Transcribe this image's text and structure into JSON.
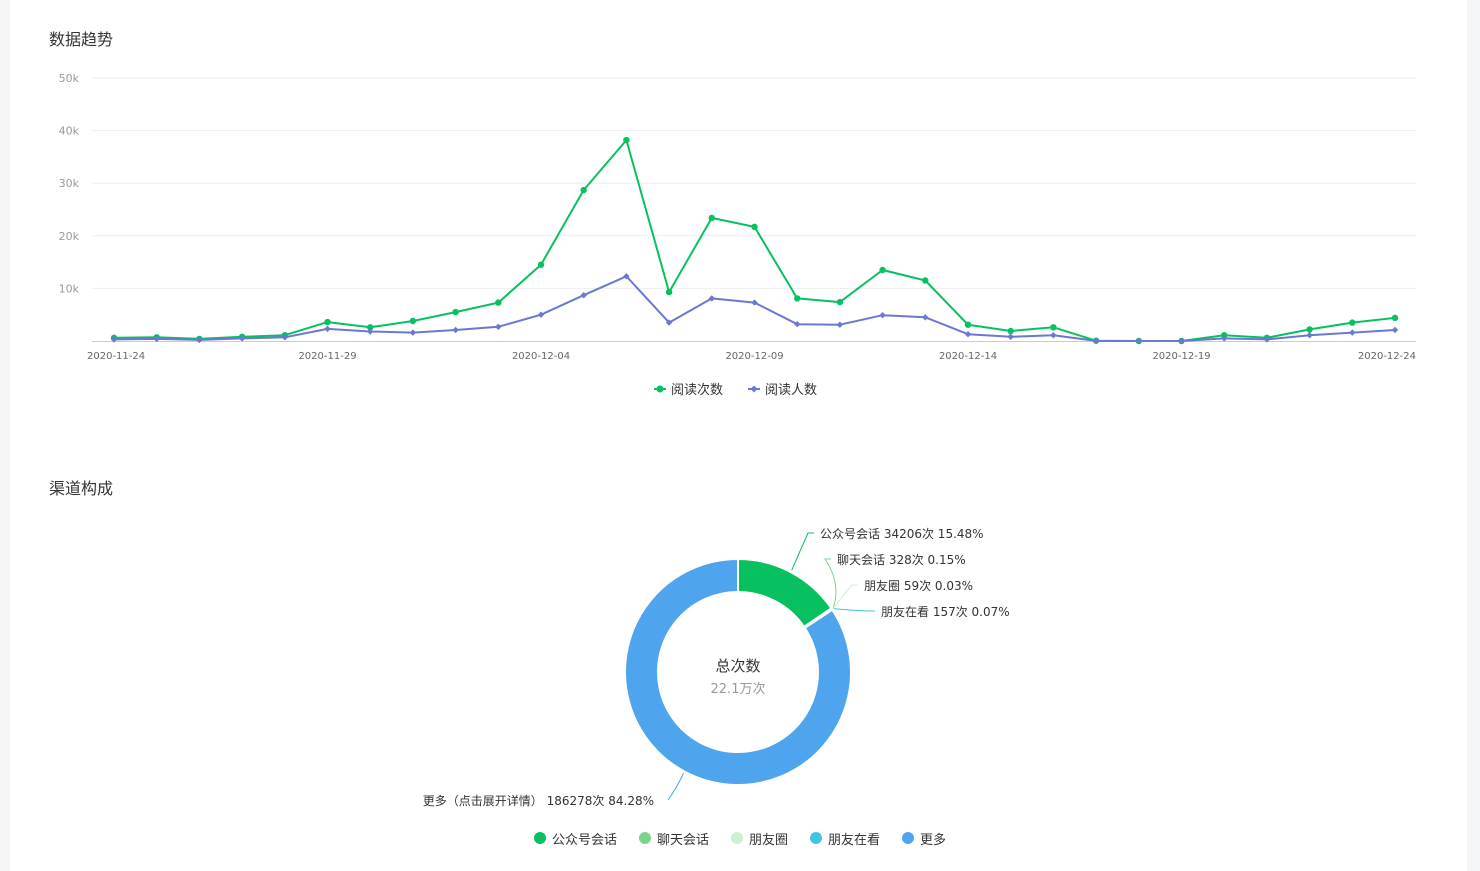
{
  "trend": {
    "title": "数据趋势"
  },
  "channel": {
    "title": "渠道构成",
    "center_title": "总次数",
    "center_value": "22.1万次"
  },
  "chart_data": [
    {
      "type": "line",
      "y_ticks": [
        "50k",
        "40k",
        "30k",
        "20k",
        "10k"
      ],
      "y_tick_values": [
        50000,
        40000,
        30000,
        20000,
        10000
      ],
      "ylim": [
        0,
        50000
      ],
      "x_tick_labels": [
        "2020-11-24",
        "2020-11-29",
        "2020-12-04",
        "2020-12-09",
        "2020-12-14",
        "2020-12-19",
        "2020-12-24"
      ],
      "x": [
        "2020-11-24",
        "2020-11-25",
        "2020-11-26",
        "2020-11-27",
        "2020-11-28",
        "2020-11-29",
        "2020-11-30",
        "2020-12-01",
        "2020-12-02",
        "2020-12-03",
        "2020-12-04",
        "2020-12-05",
        "2020-12-06",
        "2020-12-07",
        "2020-12-08",
        "2020-12-09",
        "2020-12-10",
        "2020-12-11",
        "2020-12-12",
        "2020-12-13",
        "2020-12-14",
        "2020-12-15",
        "2020-12-16",
        "2020-12-17",
        "2020-12-18",
        "2020-12-19",
        "2020-12-20",
        "2020-12-21",
        "2020-12-22",
        "2020-12-23",
        "2020-12-24"
      ],
      "series": [
        {
          "name": "阅读次数",
          "color": "#07c160",
          "marker": "circle",
          "values": [
            600,
            700,
            400,
            800,
            1100,
            3600,
            2600,
            3800,
            5500,
            7300,
            14500,
            28700,
            38200,
            9300,
            23400,
            21700,
            8100,
            7400,
            13500,
            11500,
            3100,
            1900,
            2600,
            50,
            0,
            0,
            1100,
            600,
            2200,
            3500,
            4400
          ]
        },
        {
          "name": "阅读人数",
          "color": "#6b78cf",
          "marker": "diamond",
          "values": [
            300,
            400,
            200,
            500,
            700,
            2300,
            1800,
            1600,
            2100,
            2700,
            5000,
            8700,
            12300,
            3500,
            8100,
            7300,
            3200,
            3100,
            4900,
            4500,
            1300,
            800,
            1100,
            20,
            0,
            0,
            500,
            300,
            1100,
            1600,
            2100
          ]
        }
      ],
      "legend_position": "bottom-center",
      "grid": true
    },
    {
      "type": "pie",
      "donut": true,
      "slices": [
        {
          "name": "公众号会话",
          "value": 34206,
          "percent": 15.48,
          "color": "#07c160",
          "label": "公众号会话 34206次 15.48%"
        },
        {
          "name": "聊天会话",
          "value": 328,
          "percent": 0.15,
          "color": "#7cd38c",
          "label": "聊天会话 328次 0.15%"
        },
        {
          "name": "朋友圈",
          "value": 59,
          "percent": 0.03,
          "color": "#cdf0d4",
          "label": "朋友圈 59次 0.03%"
        },
        {
          "name": "朋友在看",
          "value": 157,
          "percent": 0.07,
          "color": "#3ec5e0",
          "label": "朋友在看 157次 0.07%"
        },
        {
          "name": "更多",
          "value": 186278,
          "percent": 84.28,
          "color": "#4ea5ee",
          "label": "更多（点击展开详情） 186278次 84.28%"
        }
      ],
      "legend": [
        "公众号会话",
        "聊天会话",
        "朋友圈",
        "朋友在看",
        "更多"
      ],
      "legend_position": "bottom-center"
    }
  ]
}
